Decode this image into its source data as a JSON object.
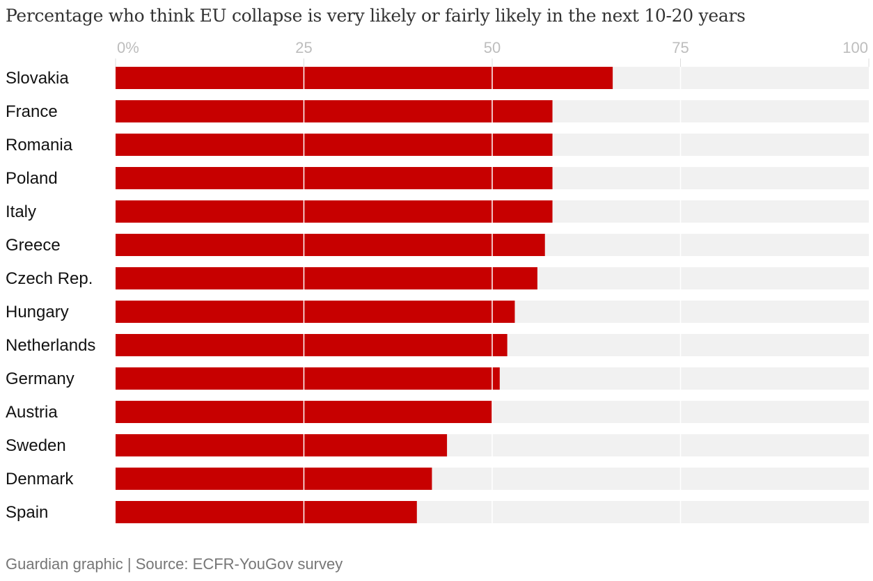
{
  "chart_data": {
    "type": "bar",
    "orientation": "horizontal",
    "title": "Percentage who think EU collapse is very likely or fairly likely in the next 10-20 years",
    "xlabel": "",
    "ylabel": "",
    "xlim": [
      0,
      100
    ],
    "ticks": [
      {
        "value": 0,
        "label": "0%"
      },
      {
        "value": 25,
        "label": "25"
      },
      {
        "value": 50,
        "label": "50"
      },
      {
        "value": 75,
        "label": "75"
      },
      {
        "value": 100,
        "label": "100"
      }
    ],
    "categories": [
      "Slovakia",
      "France",
      "Romania",
      "Poland",
      "Italy",
      "Greece",
      "Czech Rep.",
      "Hungary",
      "Netherlands",
      "Germany",
      "Austria",
      "Sweden",
      "Denmark",
      "Spain"
    ],
    "values": [
      66,
      58,
      58,
      58,
      58,
      57,
      56,
      53,
      52,
      51,
      50,
      44,
      42,
      40
    ],
    "grid": true,
    "colors": {
      "bar": "#c70000",
      "track": "#f1f1f1",
      "grid": "#ffffff",
      "tick_text": "#bdbdbd",
      "label_text": "#121212"
    }
  },
  "source": "Guardian graphic | Source: ECFR-YouGov survey"
}
